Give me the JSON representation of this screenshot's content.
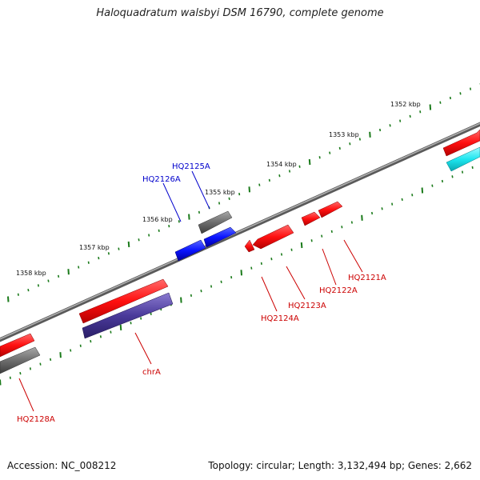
{
  "title": "Haloquadratum walsbyi DSM 16790, complete genome",
  "footer": {
    "accession": "Accession: NC_008212",
    "summary": "Topology: circular; Length: 3,132,494 bp; Genes: 2,662"
  },
  "ruler_labels": [
    "1352 kbp",
    "1353 kbp",
    "1354 kbp",
    "1355 kbp",
    "1356 kbp",
    "1357 kbp",
    "1358 kbp"
  ],
  "gene_labels": [
    {
      "name": "HQ2125A",
      "color": "#0000cc"
    },
    {
      "name": "HQ2126A",
      "color": "#0000cc"
    },
    {
      "name": "HQ2121A",
      "color": "#cc0000"
    },
    {
      "name": "HQ2122A",
      "color": "#cc0000"
    },
    {
      "name": "HQ2123A",
      "color": "#cc0000"
    },
    {
      "name": "HQ2124A",
      "color": "#cc0000"
    },
    {
      "name": "chrA",
      "color": "#cc0000"
    },
    {
      "name": "HQ2128A",
      "color": "#cc0000"
    }
  ],
  "colors": {
    "backbone": "#808080",
    "tick": "#1a7a1a",
    "cds_red": "#ff1010",
    "cds_blue": "#0a14ff",
    "cds_gray": "#6e6e6e",
    "cds_purple": "#4a3a9a",
    "cds_cyan": "#1ee6f0"
  }
}
